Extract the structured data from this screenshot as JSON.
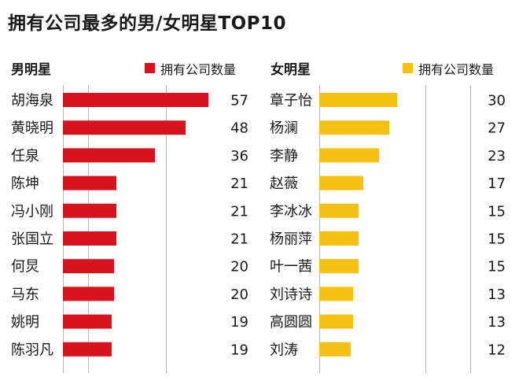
{
  "title": "拥有公司最多的男/女明星TOP10",
  "colors": {
    "male": "#d7131e",
    "female": "#f5c012",
    "grid": "#b5b5b5",
    "text": "#1a1a1a"
  },
  "chart_data": [
    {
      "type": "bar",
      "orientation": "horizontal",
      "title": "男明星",
      "legend": "拥有公司数量",
      "xlim": [
        0,
        60
      ],
      "categories": [
        "胡海泉",
        "黄晓明",
        "任泉",
        "陈坤",
        "冯小刚",
        "张国立",
        "何炅",
        "马东",
        "姚明",
        "陈羽凡"
      ],
      "values": [
        57,
        48,
        36,
        21,
        21,
        21,
        20,
        20,
        19,
        19
      ]
    },
    {
      "type": "bar",
      "orientation": "horizontal",
      "title": "女明星",
      "legend": "拥有公司数量",
      "xlim": [
        0,
        60
      ],
      "categories": [
        "章子怡",
        "杨澜",
        "李静",
        "赵薇",
        "李冰冰",
        "杨丽萍",
        "叶一茜",
        "刘诗诗",
        "高圆圆",
        "刘涛"
      ],
      "values": [
        30,
        27,
        23,
        17,
        15,
        15,
        15,
        13,
        13,
        12
      ]
    }
  ]
}
